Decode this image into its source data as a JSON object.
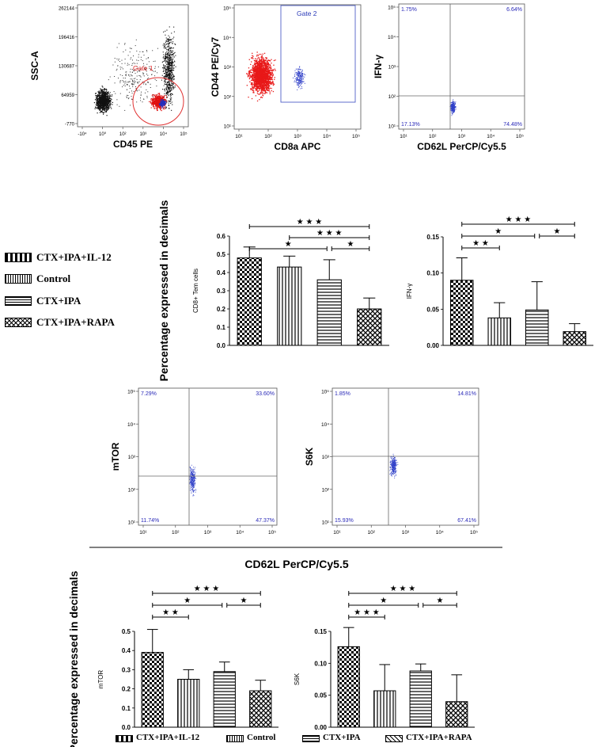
{
  "patterns": {
    "CTX+IPA+IL-12": "checker",
    "Control": "vlines",
    "CTX+IPA": "hlines",
    "CTX+IPA+RAPA": "crosshatch"
  },
  "legend": [
    "CTX+IPA+IL-12",
    "Control",
    "CTX+IPA",
    "CTX+IPA+RAPA"
  ],
  "bottom_legend": [
    "CTX+IPA+IL-12",
    "Control",
    "CTX+IPA",
    "CTX+IPA+RAPA"
  ],
  "shared_ylabel": "Percentage expressed in decimals",
  "shared_xlabel_flow": "CD62L PerCP/Cy5.5",
  "chart_data": [
    {
      "id": "flow-gate1",
      "type": "scatter",
      "xlabel": "CD45 PE",
      "ylabel": "SSC-A",
      "yticks": [
        "262144",
        "196416",
        "130687",
        "64959",
        "-770"
      ],
      "xticks": [
        "-10⁴",
        "10⁰",
        "10²",
        "10³",
        "10⁴",
        "10⁵"
      ],
      "gate_label": "Gate 1"
    },
    {
      "id": "flow-gate2",
      "type": "scatter",
      "xlabel": "CD8a APC",
      "ylabel": "CD44 PE/Cy7",
      "yticks": [
        "10⁵",
        "10⁴",
        "10³",
        "10²",
        "10¹"
      ],
      "xticks": [
        "10¹",
        "10²",
        "10³",
        "10⁴",
        "10⁵"
      ],
      "gate_label": "Gate 2"
    },
    {
      "id": "flow-ifng",
      "type": "scatter",
      "xlabel": "CD62L PerCP/Cy5.5",
      "ylabel": "IFN-γ",
      "yticks": [
        "10⁵",
        "10⁴",
        "10³",
        "10²",
        "10¹"
      ],
      "xticks": [
        "10¹",
        "10²",
        "10³",
        "10⁴",
        "10⁵"
      ],
      "quadrants": {
        "ul": "1.75%",
        "ur": "6.64%",
        "ll": "17.13%",
        "lr": "74.48%"
      }
    },
    {
      "id": "bar-cd8",
      "type": "bar",
      "categories": [
        "CTX+IPA+IL-12",
        "Control",
        "CTX+IPA",
        "CTX+IPA+RAPA"
      ],
      "values": [
        0.48,
        0.43,
        0.36,
        0.2
      ],
      "errors": [
        0.06,
        0.06,
        0.11,
        0.06
      ],
      "ylabel": "CD8+ Tem cells",
      "ylim": [
        0,
        0.6
      ],
      "yticks": [
        "0.0",
        "0.1",
        "0.2",
        "0.3",
        "0.4",
        "0.5",
        "0.6"
      ],
      "significance": [
        {
          "from": 0,
          "to": 3,
          "label": "★ ★ ★"
        },
        {
          "from": 1,
          "to": 3,
          "label": "★ ★ ★"
        },
        {
          "from": 0,
          "to": 2,
          "label": "★",
          "to2": 3,
          "label2": "★"
        }
      ]
    },
    {
      "id": "bar-ifng",
      "type": "bar",
      "categories": [
        "CTX+IPA+IL-12",
        "Control",
        "CTX+IPA",
        "CTX+IPA+RAPA"
      ],
      "values": [
        0.09,
        0.038,
        0.049,
        0.019
      ],
      "errors": [
        0.031,
        0.021,
        0.039,
        0.011
      ],
      "ylabel": "IFN-γ",
      "ylim": [
        0,
        0.15
      ],
      "yticks": [
        "0.00",
        "0.05",
        "0.10",
        "0.15"
      ],
      "significance": [
        {
          "from": 0,
          "to": 3,
          "label": "★ ★ ★"
        },
        {
          "from": 0,
          "to": 2,
          "label": "★",
          "to2": 3,
          "label2": "★"
        },
        {
          "from": 0,
          "to": 1,
          "label": "★ ★"
        }
      ]
    },
    {
      "id": "flow-mtor",
      "type": "scatter",
      "xlabel": "",
      "ylabel": "mTOR",
      "yticks": [
        "10⁵",
        "10⁴",
        "10³",
        "10²",
        "10¹"
      ],
      "xticks": [
        "10¹",
        "10²",
        "10³",
        "10⁴",
        "10⁵"
      ],
      "quadrants": {
        "ul": "7.29%",
        "ur": "33.60%",
        "ll": "11.74%",
        "lr": "47.37%"
      }
    },
    {
      "id": "flow-s6k",
      "type": "scatter",
      "xlabel": "",
      "ylabel": "S6K",
      "yticks": [
        "10⁵",
        "10⁴",
        "10³",
        "10²",
        "10¹"
      ],
      "xticks": [
        "10¹",
        "10²",
        "10³",
        "10⁴",
        "10⁵"
      ],
      "quadrants": {
        "ul": "1.85%",
        "ur": "14.81%",
        "ll": "15.93%",
        "lr": "67.41%"
      }
    },
    {
      "id": "bar-mtor",
      "type": "bar",
      "categories": [
        "CTX+IPA+IL-12",
        "Control",
        "CTX+IPA",
        "CTX+IPA+RAPA"
      ],
      "values": [
        0.39,
        0.25,
        0.29,
        0.19
      ],
      "errors": [
        0.12,
        0.05,
        0.05,
        0.055
      ],
      "ylabel": "mTOR",
      "ylim": [
        0,
        0.5
      ],
      "yticks": [
        "0.0",
        "0.1",
        "0.2",
        "0.3",
        "0.4",
        "0.5"
      ],
      "significance": [
        {
          "from": 0,
          "to": 3,
          "label": "★ ★ ★"
        },
        {
          "from": 0,
          "to": 2,
          "label": "★",
          "to2": 3,
          "label2": "★"
        },
        {
          "from": 0,
          "to": 1,
          "label": "★ ★"
        }
      ]
    },
    {
      "id": "bar-s6k",
      "type": "bar",
      "categories": [
        "CTX+IPA+IL-12",
        "Control",
        "CTX+IPA",
        "CTX+IPA+RAPA"
      ],
      "values": [
        0.126,
        0.057,
        0.088,
        0.04
      ],
      "errors": [
        0.03,
        0.041,
        0.011,
        0.042
      ],
      "ylabel": "S6K",
      "ylim": [
        0,
        0.15
      ],
      "yticks": [
        "0.00",
        "0.05",
        "0.10",
        "0.15"
      ],
      "significance": [
        {
          "from": 0,
          "to": 3,
          "label": "★ ★ ★"
        },
        {
          "from": 0,
          "to": 2,
          "label": "★",
          "to2": 3,
          "label2": "★"
        },
        {
          "from": 0,
          "to": 1,
          "label": "★ ★ ★"
        }
      ]
    }
  ]
}
